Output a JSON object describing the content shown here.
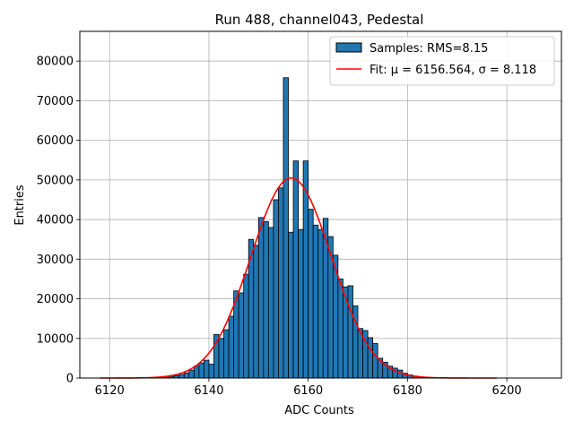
{
  "chart_data": {
    "type": "bar",
    "title": "Run 488, channel043, Pedestal",
    "xlabel": "ADC Counts",
    "ylabel": "Entries",
    "xlim": [
      6114,
      6211
    ],
    "ylim": [
      0,
      87500
    ],
    "xticks": [
      6120,
      6140,
      6160,
      6180,
      6200
    ],
    "yticks": [
      0,
      10000,
      20000,
      30000,
      40000,
      50000,
      60000,
      70000,
      80000
    ],
    "grid": true,
    "legend_position": "top-right",
    "bin_width": 1,
    "histogram": {
      "name": "Samples: RMS=8.15",
      "color": "#1f77b4",
      "edgecolor": "#000000",
      "x": [
        6130,
        6131,
        6132,
        6133,
        6134,
        6135,
        6136,
        6137,
        6138,
        6139,
        6140,
        6141,
        6142,
        6143,
        6144,
        6145,
        6146,
        6147,
        6148,
        6149,
        6150,
        6151,
        6152,
        6153,
        6154,
        6155,
        6156,
        6157,
        6158,
        6159,
        6160,
        6161,
        6162,
        6163,
        6164,
        6165,
        6166,
        6167,
        6168,
        6169,
        6170,
        6171,
        6172,
        6173,
        6174,
        6175,
        6176,
        6177,
        6178,
        6179,
        6180,
        6181,
        6182,
        6183,
        6184
      ],
      "values": [
        100,
        200,
        400,
        600,
        900,
        1300,
        2000,
        3000,
        3800,
        4500,
        3500,
        11000,
        10000,
        12200,
        15600,
        22000,
        21500,
        26200,
        35000,
        33500,
        40500,
        39500,
        38000,
        45000,
        48000,
        75800,
        36800,
        54800,
        37500,
        54800,
        42600,
        38600,
        37500,
        40300,
        35700,
        31000,
        25000,
        23000,
        23300,
        18200,
        12500,
        12000,
        10200,
        8700,
        5000,
        4000,
        3000,
        2500,
        2000,
        1200,
        800,
        500,
        300,
        200,
        100
      ]
    },
    "fit": {
      "name": "Fit: μ = 6156.564, σ = 8.118",
      "color": "#ff0000",
      "mu": 6156.564,
      "sigma": 8.118,
      "amplitude": 50500,
      "x_range": [
        6118,
        6198
      ]
    }
  }
}
